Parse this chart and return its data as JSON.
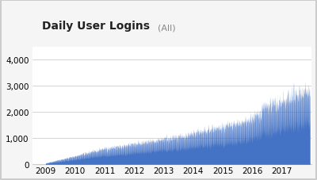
{
  "title": "Daily User Logins",
  "subtitle": "(All)",
  "bar_color": "#4472C4",
  "background_color": "#f5f5f5",
  "plot_bg_color": "#ffffff",
  "grid_color": "#cccccc",
  "ylim": [
    0,
    4500
  ],
  "yticks": [
    0,
    1000,
    2000,
    3000,
    4000
  ],
  "year_start": 2009.0,
  "year_end": 2018.0,
  "xlim_left": 2008.55,
  "xlim_right": 2018.0,
  "xtick_years": [
    2009,
    2010,
    2011,
    2012,
    2013,
    2014,
    2015,
    2016,
    2017
  ],
  "title_fontsize": 10,
  "subtitle_fontsize": 8,
  "tick_fontsize": 7.5,
  "spine_color": "#cccccc",
  "border_color": "#cccccc"
}
